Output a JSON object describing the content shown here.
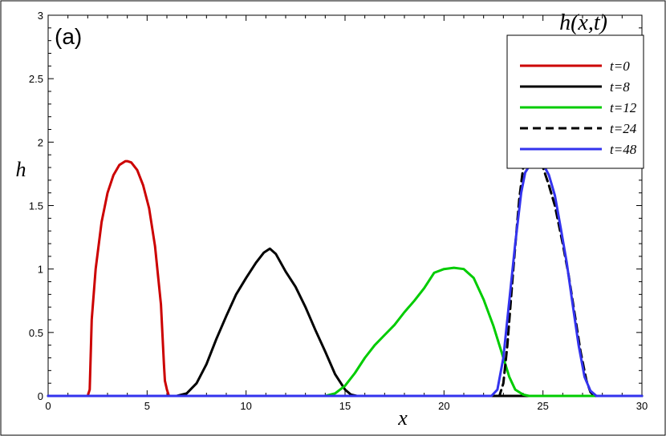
{
  "chart_data": {
    "type": "line",
    "panel_label": "(a)",
    "legend_title": "h(x,t)",
    "xlabel": "x",
    "ylabel": "h",
    "xlim": [
      0,
      30
    ],
    "ylim": [
      0,
      3
    ],
    "x_ticks": [
      0,
      5,
      10,
      15,
      20,
      25,
      30
    ],
    "x_tick_labels": [
      "0",
      "5",
      "10",
      "15",
      "20",
      "25",
      "30"
    ],
    "y_ticks": [
      0,
      0.5,
      1,
      1.5,
      2,
      2.5,
      3
    ],
    "y_tick_labels": [
      "0",
      "0.5",
      "1",
      "1.5",
      "2",
      "2.5",
      "3"
    ],
    "grid": false,
    "legend_position": "top-right",
    "series": [
      {
        "name": "t=0",
        "color": "#cc0000",
        "dash": "solid",
        "x": [
          0,
          2.0,
          2.1,
          2.2,
          2.4,
          2.7,
          3.0,
          3.3,
          3.6,
          3.9,
          4.0,
          4.2,
          4.5,
          4.8,
          5.1,
          5.4,
          5.7,
          5.85,
          5.9,
          6.0,
          6.1,
          6.3,
          30
        ],
        "y": [
          0,
          0,
          0.05,
          0.6,
          1.0,
          1.37,
          1.6,
          1.74,
          1.82,
          1.85,
          1.85,
          1.84,
          1.78,
          1.66,
          1.48,
          1.18,
          0.72,
          0.25,
          0.12,
          0.05,
          0.0,
          0,
          0
        ]
      },
      {
        "name": "t=8",
        "color": "#000000",
        "dash": "solid",
        "x": [
          0,
          6.5,
          7.0,
          7.5,
          8.0,
          8.5,
          9.0,
          9.5,
          10.0,
          10.5,
          10.9,
          11.2,
          11.5,
          12.0,
          12.5,
          13.0,
          13.5,
          14.0,
          14.5,
          15.0,
          15.3,
          15.6,
          30
        ],
        "y": [
          0,
          0,
          0.02,
          0.1,
          0.25,
          0.45,
          0.63,
          0.8,
          0.93,
          1.05,
          1.13,
          1.16,
          1.12,
          0.98,
          0.86,
          0.7,
          0.52,
          0.35,
          0.17,
          0.05,
          0.01,
          0,
          0
        ]
      },
      {
        "name": "t=12",
        "color": "#00cc00",
        "dash": "solid",
        "x": [
          0,
          14.0,
          14.5,
          15.0,
          15.5,
          16.0,
          16.5,
          17.0,
          17.5,
          18.0,
          18.5,
          19.0,
          19.5,
          20.0,
          20.5,
          21.0,
          21.5,
          22.0,
          22.5,
          23.0,
          23.3,
          23.6,
          24.0,
          24.3,
          30
        ],
        "y": [
          0,
          0,
          0.02,
          0.08,
          0.18,
          0.3,
          0.4,
          0.48,
          0.56,
          0.66,
          0.75,
          0.85,
          0.97,
          1.0,
          1.01,
          1.0,
          0.93,
          0.76,
          0.55,
          0.3,
          0.15,
          0.05,
          0.01,
          0,
          0
        ]
      },
      {
        "name": "t=24",
        "color": "#000000",
        "dash": "dashed",
        "x": [
          0,
          22.8,
          23.0,
          23.2,
          23.5,
          23.8,
          24.0,
          24.2,
          24.4,
          24.6,
          24.8,
          25.0,
          25.3,
          25.6,
          26.0,
          26.3,
          26.6,
          26.9,
          27.2,
          27.4,
          27.6,
          30
        ],
        "y": [
          0,
          0,
          0.1,
          0.4,
          1.0,
          1.55,
          1.8,
          1.92,
          1.95,
          1.92,
          1.87,
          1.8,
          1.66,
          1.5,
          1.2,
          0.95,
          0.65,
          0.35,
          0.12,
          0.03,
          0,
          0
        ]
      },
      {
        "name": "t=48",
        "color": "#3333ee",
        "dash": "solid",
        "x": [
          0,
          22.4,
          22.7,
          23.0,
          23.3,
          23.6,
          23.9,
          24.1,
          24.3,
          24.6,
          24.9,
          25.1,
          25.3,
          25.6,
          25.9,
          26.2,
          26.5,
          26.8,
          27.1,
          27.4,
          27.7,
          30
        ],
        "y": [
          0,
          0,
          0.05,
          0.3,
          0.75,
          1.2,
          1.6,
          1.76,
          1.81,
          1.82,
          1.82,
          1.8,
          1.74,
          1.58,
          1.32,
          1.05,
          0.72,
          0.4,
          0.15,
          0.04,
          0,
          0
        ]
      }
    ]
  }
}
